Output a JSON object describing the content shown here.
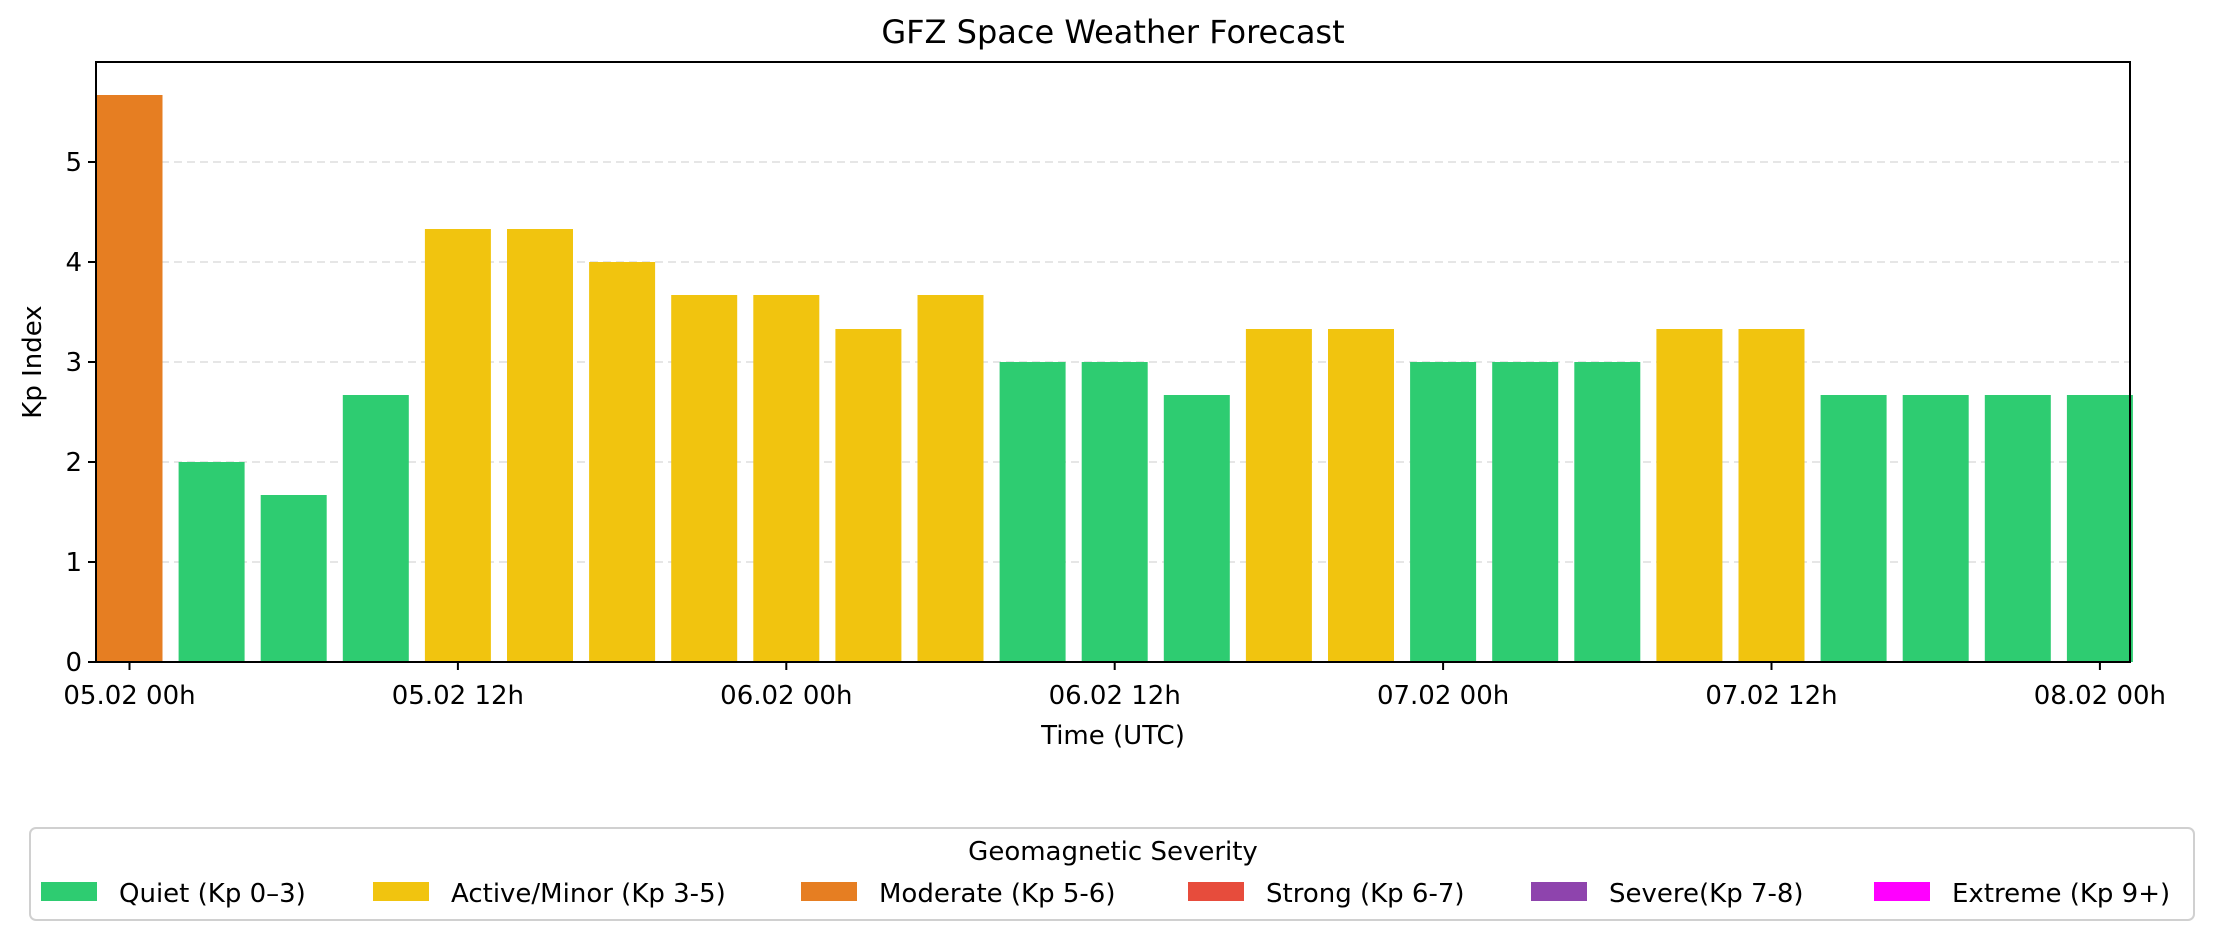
{
  "chart_data": {
    "type": "bar",
    "title": "GFZ Space Weather Forecast",
    "xlabel": "Time (UTC)",
    "ylabel": "Kp Index",
    "ylim": [
      0,
      6
    ],
    "yticks": [
      0,
      1,
      2,
      3,
      4,
      5
    ],
    "grid": "y-dashed",
    "x_tick_labels": [
      {
        "index": 0,
        "label": "05.02 00h"
      },
      {
        "index": 4,
        "label": "05.02 12h"
      },
      {
        "index": 8,
        "label": "06.02 00h"
      },
      {
        "index": 12,
        "label": "06.02 12h"
      },
      {
        "index": 16,
        "label": "07.02 00h"
      },
      {
        "index": 20,
        "label": "07.02 12h"
      },
      {
        "index": 24,
        "label": "08.02 00h"
      }
    ],
    "bars": [
      {
        "value": 5.67,
        "category": "moderate"
      },
      {
        "value": 2.0,
        "category": "quiet"
      },
      {
        "value": 1.67,
        "category": "quiet"
      },
      {
        "value": 2.67,
        "category": "quiet"
      },
      {
        "value": 4.33,
        "category": "active"
      },
      {
        "value": 4.33,
        "category": "active"
      },
      {
        "value": 4.0,
        "category": "active"
      },
      {
        "value": 3.67,
        "category": "active"
      },
      {
        "value": 3.67,
        "category": "active"
      },
      {
        "value": 3.33,
        "category": "active"
      },
      {
        "value": 3.67,
        "category": "active"
      },
      {
        "value": 3.0,
        "category": "quiet"
      },
      {
        "value": 3.0,
        "category": "quiet"
      },
      {
        "value": 2.67,
        "category": "quiet"
      },
      {
        "value": 3.33,
        "category": "active"
      },
      {
        "value": 3.33,
        "category": "active"
      },
      {
        "value": 3.0,
        "category": "quiet"
      },
      {
        "value": 3.0,
        "category": "quiet"
      },
      {
        "value": 3.0,
        "category": "quiet"
      },
      {
        "value": 3.33,
        "category": "active"
      },
      {
        "value": 3.33,
        "category": "active"
      },
      {
        "value": 2.67,
        "category": "quiet"
      },
      {
        "value": 2.67,
        "category": "quiet"
      },
      {
        "value": 2.67,
        "category": "quiet"
      },
      {
        "value": 2.67,
        "category": "quiet"
      }
    ],
    "legend": {
      "title": "Geomagnetic Severity",
      "placement": "bottom-center",
      "entries": [
        {
          "key": "quiet",
          "label": "Quiet (Kp 0–3)",
          "color": "#2ecc71"
        },
        {
          "key": "active",
          "label": "Active/Minor (Kp 3-5)",
          "color": "#f1c40f"
        },
        {
          "key": "moderate",
          "label": "Moderate (Kp 5-6)",
          "color": "#e67e22"
        },
        {
          "key": "strong",
          "label": "Strong (Kp 6-7)",
          "color": "#e74c3c"
        },
        {
          "key": "severe",
          "label": "Severe(Kp 7-8)",
          "color": "#8e44ad"
        },
        {
          "key": "extreme",
          "label": "Extreme (Kp 9+)",
          "color": "#ff00ff"
        }
      ]
    }
  }
}
